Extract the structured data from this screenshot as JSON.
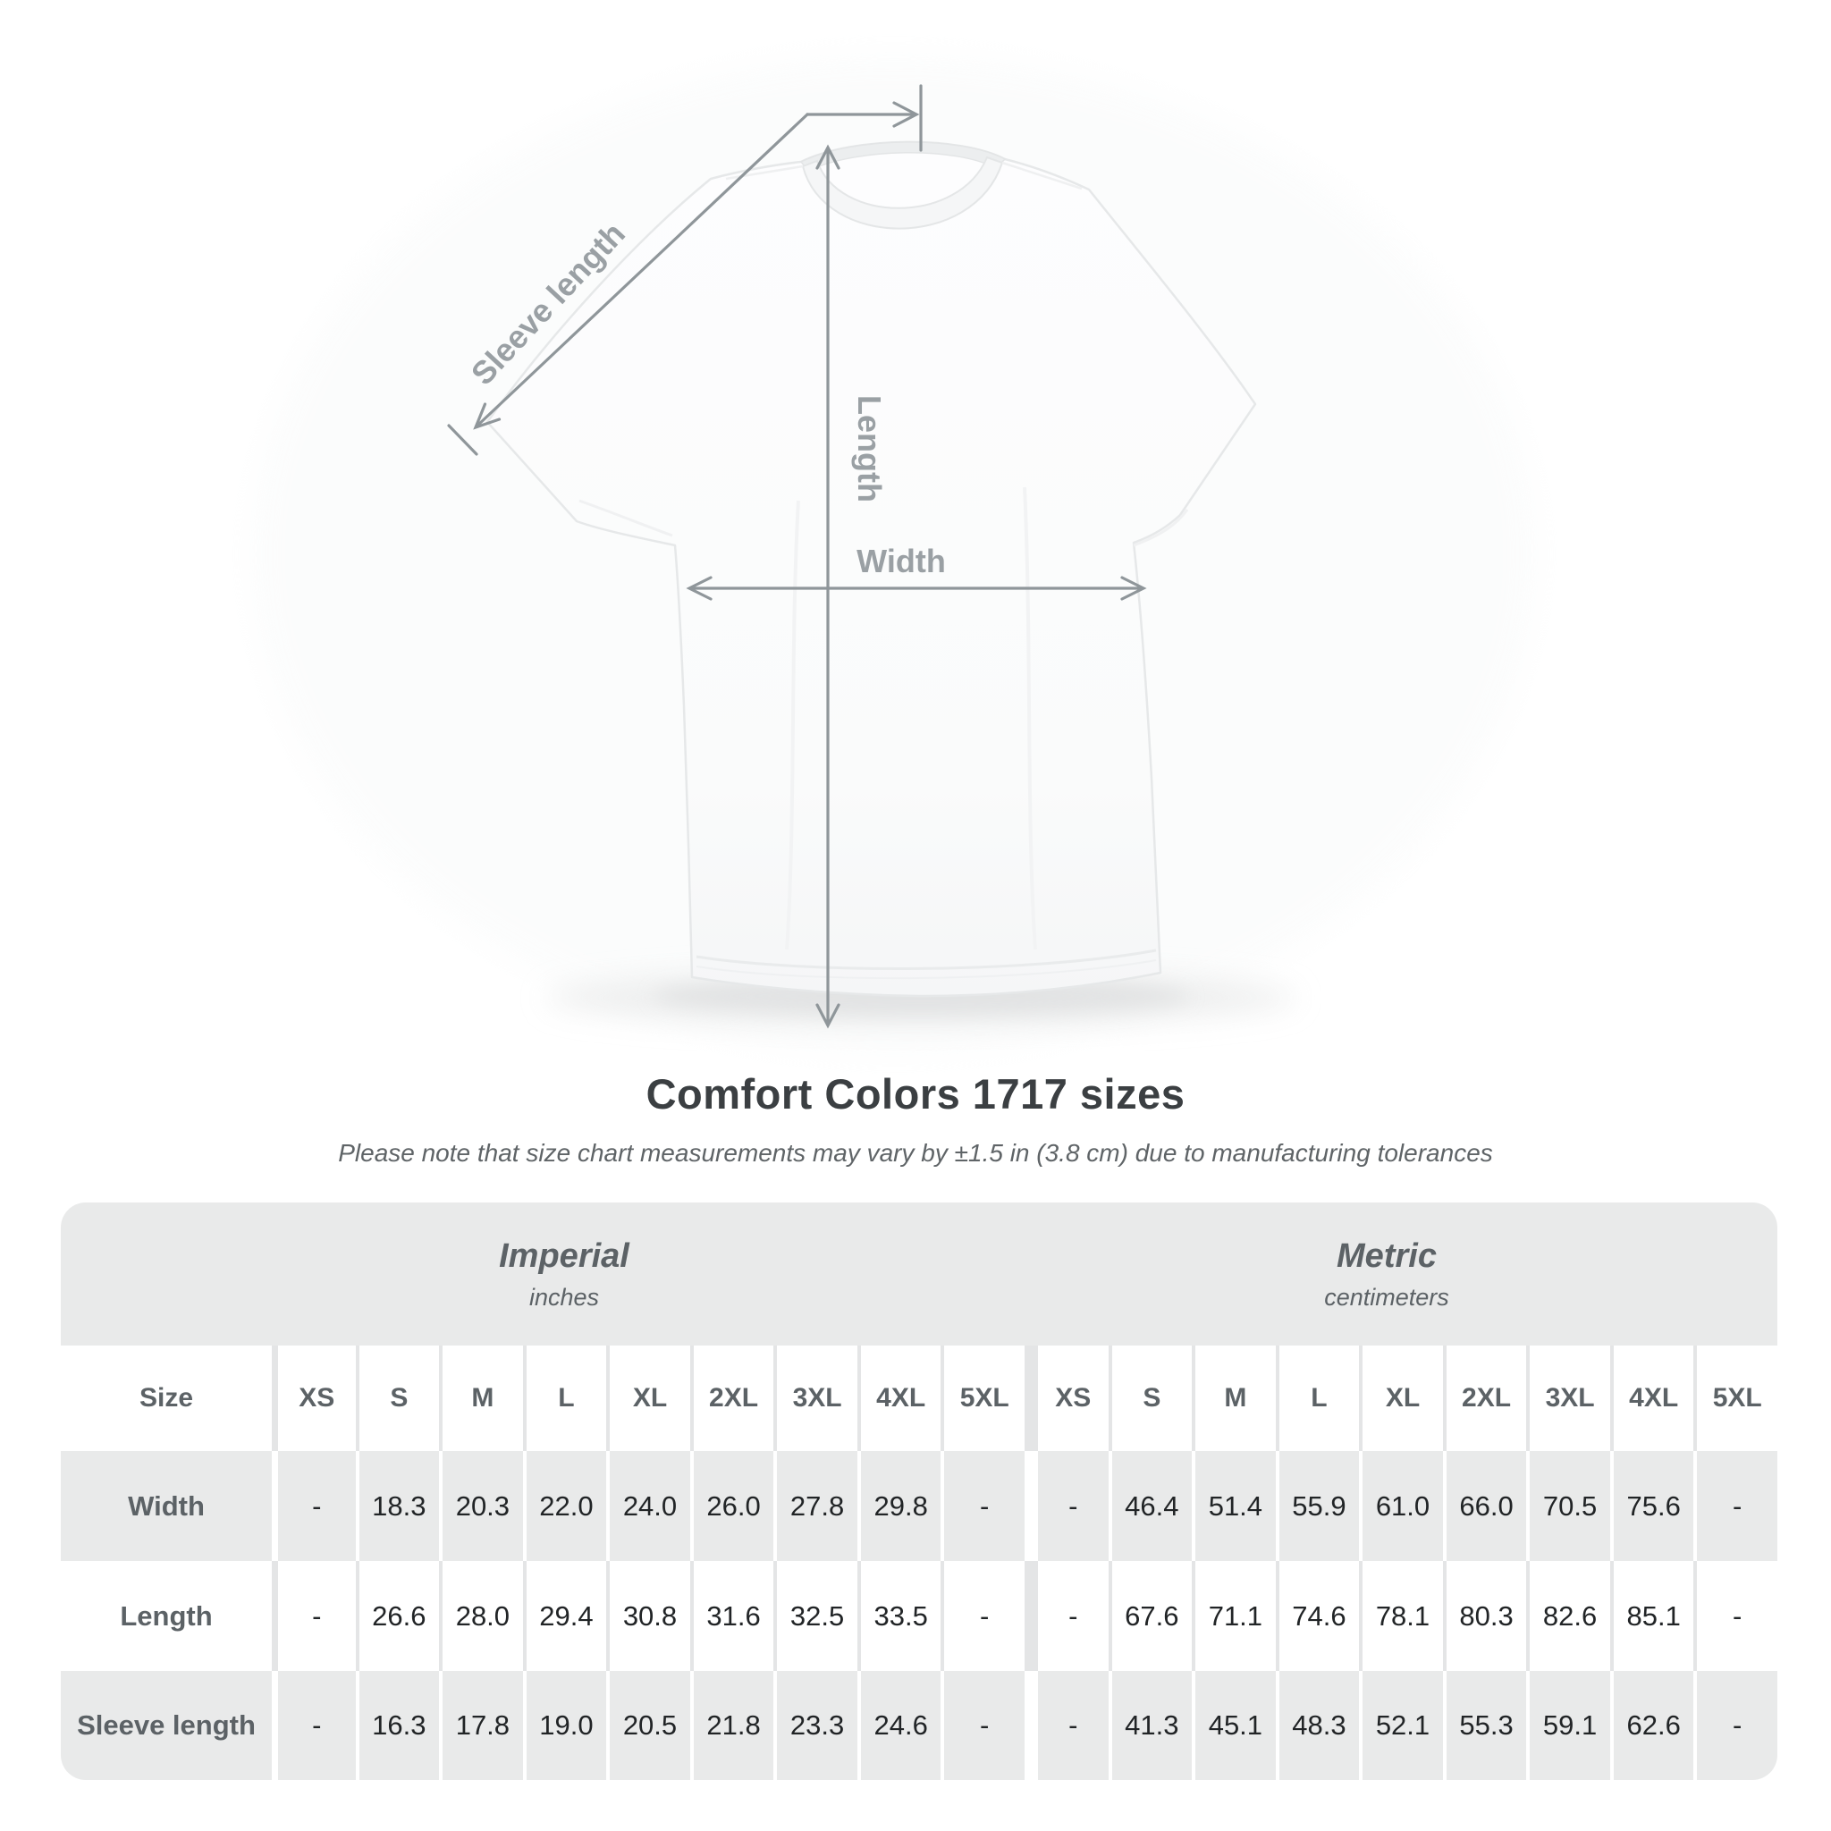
{
  "title": "Comfort Colors 1717 sizes",
  "subtitle": "Please note that size chart measurements may vary by ±1.5 in (3.8 cm) due to manufacturing tolerances",
  "figure": {
    "labels": {
      "sleeve_length": "Sleeve length",
      "length": "Length",
      "width": "Width"
    }
  },
  "colors": {
    "arrow_gray": "#8f969a",
    "figure_label_gray": "#9aa0a4",
    "row_gray": "#e9eaea",
    "divider_gray": "#e4e5e6",
    "header_text": "#5c6266",
    "value_text": "#212426",
    "title_text": "#3b3f42"
  },
  "table": {
    "group_headers": [
      {
        "label": "Imperial",
        "sublabel": "inches"
      },
      {
        "label": "Metric",
        "sublabel": "centimeters"
      }
    ],
    "size_header_label": "Size",
    "sizes": [
      "XS",
      "S",
      "M",
      "L",
      "XL",
      "2XL",
      "3XL",
      "4XL",
      "5XL"
    ],
    "rows": [
      {
        "label": "Width",
        "imperial": [
          "-",
          "18.3",
          "20.3",
          "22.0",
          "24.0",
          "26.0",
          "27.8",
          "29.8",
          "-"
        ],
        "metric": [
          "-",
          "46.4",
          "51.4",
          "55.9",
          "61.0",
          "66.0",
          "70.5",
          "75.6",
          "-"
        ]
      },
      {
        "label": "Length",
        "imperial": [
          "-",
          "26.6",
          "28.0",
          "29.4",
          "30.8",
          "31.6",
          "32.5",
          "33.5",
          "-"
        ],
        "metric": [
          "-",
          "67.6",
          "71.1",
          "74.6",
          "78.1",
          "80.3",
          "82.6",
          "85.1",
          "-"
        ]
      },
      {
        "label": "Sleeve length",
        "imperial": [
          "-",
          "16.3",
          "17.8",
          "19.0",
          "20.5",
          "21.8",
          "23.3",
          "24.6",
          "-"
        ],
        "metric": [
          "-",
          "41.3",
          "45.1",
          "48.3",
          "52.1",
          "55.3",
          "59.1",
          "62.6",
          "-"
        ]
      }
    ]
  },
  "chart_data": {
    "type": "table",
    "title": "Comfort Colors 1717 sizes",
    "note": "Please note that size chart measurements may vary by ±1.5 in (3.8 cm) due to manufacturing tolerances",
    "column_groups": [
      {
        "name": "Imperial",
        "unit": "inches"
      },
      {
        "name": "Metric",
        "unit": "centimeters"
      }
    ],
    "sizes": [
      "XS",
      "S",
      "M",
      "L",
      "XL",
      "2XL",
      "3XL",
      "4XL",
      "5XL"
    ],
    "rows": [
      {
        "measurement": "Width",
        "imperial_inches": [
          null,
          18.3,
          20.3,
          22.0,
          24.0,
          26.0,
          27.8,
          29.8,
          null
        ],
        "metric_cm": [
          null,
          46.4,
          51.4,
          55.9,
          61.0,
          66.0,
          70.5,
          75.6,
          null
        ]
      },
      {
        "measurement": "Length",
        "imperial_inches": [
          null,
          26.6,
          28.0,
          29.4,
          30.8,
          31.6,
          32.5,
          33.5,
          null
        ],
        "metric_cm": [
          null,
          67.6,
          71.1,
          74.6,
          78.1,
          80.3,
          82.6,
          85.1,
          null
        ]
      },
      {
        "measurement": "Sleeve length",
        "imperial_inches": [
          null,
          16.3,
          17.8,
          19.0,
          20.5,
          21.8,
          23.3,
          24.6,
          null
        ],
        "metric_cm": [
          null,
          41.3,
          45.1,
          48.3,
          52.1,
          55.3,
          59.1,
          62.6,
          null
        ]
      }
    ]
  }
}
